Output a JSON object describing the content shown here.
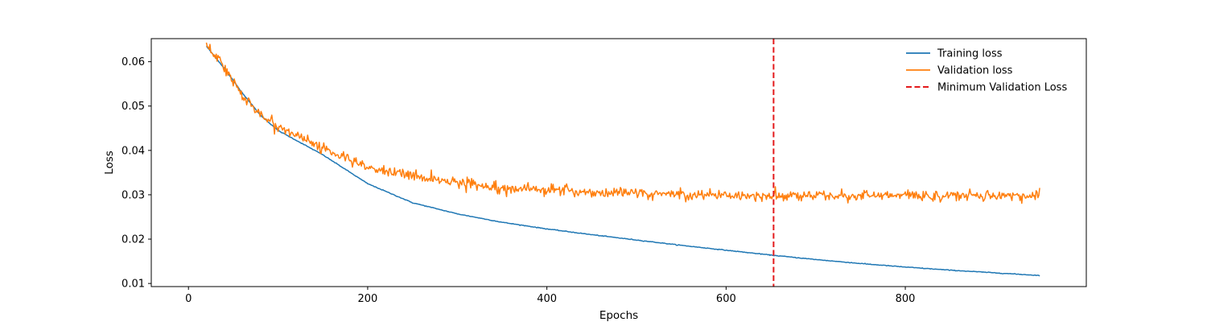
{
  "chart_data": {
    "type": "line",
    "title": "",
    "xlabel": "Epochs",
    "ylabel": "Loss",
    "xlim": [
      -41.5,
      1002
    ],
    "ylim": [
      0.0093,
      0.0652
    ],
    "x_ticks": [
      0,
      200,
      400,
      600,
      800
    ],
    "y_ticks": [
      0.01,
      0.02,
      0.03,
      0.04,
      0.05,
      0.06
    ],
    "x_tick_labels": [
      "0",
      "200",
      "400",
      "600",
      "800"
    ],
    "y_tick_labels": [
      "0.01",
      "0.02",
      "0.03",
      "0.04",
      "0.05",
      "0.06"
    ],
    "grid": false,
    "legend_position": "top-right",
    "x_range": [
      20,
      950
    ],
    "series": [
      {
        "name": "Training loss",
        "color": "#1f77b4",
        "style": "solid",
        "points": [
          [
            20,
            0.0635
          ],
          [
            40,
            0.0585
          ],
          [
            60,
            0.053
          ],
          [
            80,
            0.048
          ],
          [
            100,
            0.0445
          ],
          [
            150,
            0.039
          ],
          [
            200,
            0.0325
          ],
          [
            250,
            0.0282
          ],
          [
            300,
            0.0257
          ],
          [
            350,
            0.0238
          ],
          [
            400,
            0.0223
          ],
          [
            450,
            0.021
          ],
          [
            500,
            0.0198
          ],
          [
            550,
            0.0186
          ],
          [
            600,
            0.0175
          ],
          [
            650,
            0.0164
          ],
          [
            700,
            0.0154
          ],
          [
            750,
            0.0145
          ],
          [
            800,
            0.0137
          ],
          [
            850,
            0.013
          ],
          [
            900,
            0.0124
          ],
          [
            950,
            0.0118
          ]
        ]
      },
      {
        "name": "Validation loss",
        "color": "#ff7f0e",
        "style": "solid",
        "noise": 0.0006,
        "points": [
          [
            20,
            0.0638
          ],
          [
            40,
            0.059
          ],
          [
            60,
            0.0525
          ],
          [
            80,
            0.048
          ],
          [
            100,
            0.0455
          ],
          [
            150,
            0.0405
          ],
          [
            200,
            0.036
          ],
          [
            250,
            0.0343
          ],
          [
            300,
            0.0328
          ],
          [
            350,
            0.0317
          ],
          [
            400,
            0.0311
          ],
          [
            450,
            0.0306
          ],
          [
            500,
            0.0303
          ],
          [
            550,
            0.0301
          ],
          [
            600,
            0.0299
          ],
          [
            650,
            0.0298
          ],
          [
            700,
            0.0298
          ],
          [
            750,
            0.0298
          ],
          [
            800,
            0.0298
          ],
          [
            850,
            0.0298
          ],
          [
            900,
            0.0299
          ],
          [
            950,
            0.0296
          ]
        ]
      }
    ],
    "vlines": [
      {
        "name": "Minimum Validation Loss",
        "x": 653,
        "color": "#e31a1c",
        "style": "dashed"
      }
    ]
  }
}
